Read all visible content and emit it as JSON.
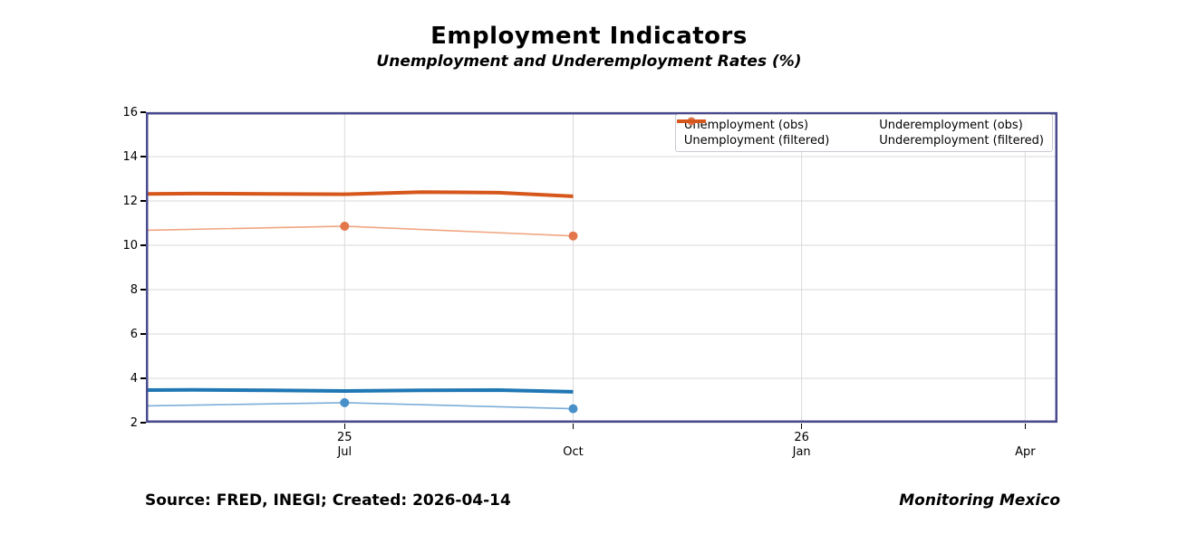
{
  "header": {
    "title": "Employment Indicators",
    "subtitle": "Unemployment and Underemployment Rates (%)"
  },
  "footer": {
    "source": "Source: FRED, INEGI; Created: 2026-04-14",
    "brand": "Monitoring Mexico"
  },
  "chart_data": {
    "type": "line",
    "title": "Employment Indicators",
    "subtitle": "Unemployment and Underemployment Rates (%)",
    "xlabel": "",
    "ylabel": "",
    "xlim": [
      "2025-04-12",
      "2026-04-14"
    ],
    "ylim": [
      2,
      16
    ],
    "grid": true,
    "legend_position": "upper right, 2 columns",
    "y_ticks": [
      2,
      4,
      6,
      8,
      10,
      12,
      14,
      16
    ],
    "x_ticks": [
      {
        "date": "2025-07-01",
        "year_label": "25",
        "month_label": "Jul"
      },
      {
        "date": "2025-10-01",
        "year_label": "",
        "month_label": "Oct"
      },
      {
        "date": "2026-01-01",
        "year_label": "26",
        "month_label": "Jan"
      },
      {
        "date": "2026-04-01",
        "year_label": "",
        "month_label": "Apr"
      }
    ],
    "series": [
      {
        "name": "Unemployment (obs)",
        "style": "marker-line",
        "color": "#7badd8",
        "marker_color": "#4a90c8",
        "width": 1.6,
        "x": [
          "2025-04-01",
          "2025-07-01",
          "2025-10-01"
        ],
        "values": [
          2.74,
          2.9,
          2.63
        ]
      },
      {
        "name": "Unemployment (filtered)",
        "style": "line",
        "color": "#1f77b4",
        "width": 4,
        "x": [
          "2025-04-01",
          "2025-05-01",
          "2025-06-01",
          "2025-07-01",
          "2025-08-01",
          "2025-09-01",
          "2025-10-01"
        ],
        "values": [
          3.46,
          3.48,
          3.46,
          3.43,
          3.46,
          3.47,
          3.39
        ]
      },
      {
        "name": "Underemployment (obs)",
        "style": "marker-line",
        "color": "#f0a580",
        "marker_color": "#e3764b",
        "width": 1.6,
        "x": [
          "2025-04-01",
          "2025-07-01",
          "2025-10-01"
        ],
        "values": [
          10.65,
          10.86,
          10.42
        ]
      },
      {
        "name": "Underemployment (filtered)",
        "style": "line",
        "color": "#d6571c",
        "width": 4,
        "x": [
          "2025-04-01",
          "2025-05-01",
          "2025-06-01",
          "2025-07-01",
          "2025-08-01",
          "2025-09-01",
          "2025-10-01"
        ],
        "values": [
          12.31,
          12.33,
          12.32,
          12.3,
          12.4,
          12.37,
          12.21
        ]
      }
    ],
    "colors": {
      "spine": "#4a4a8f",
      "grid": "#d9d9d9",
      "tick": "#000000",
      "legend_border": "#c9c9d3"
    }
  }
}
